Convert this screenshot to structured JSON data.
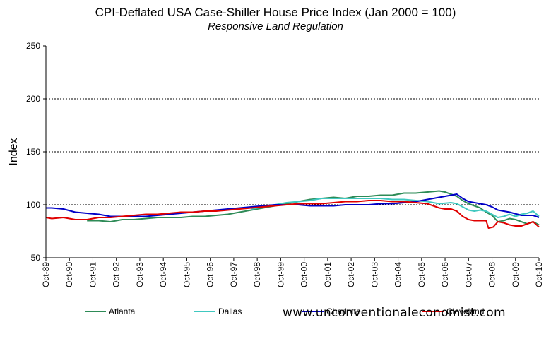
{
  "chart_data": {
    "type": "line",
    "title": "CPI-Deflated USA Case-Shiller House Price Index (Jan 2000 = 100)",
    "subtitle": "Responsive Land Regulation",
    "xlabel": "",
    "ylabel": "Index",
    "ylim": [
      50,
      250
    ],
    "yticks": [
      50,
      100,
      150,
      200,
      250
    ],
    "grid": "horizontal dashed at 100, 150, 200",
    "legend_position": "bottom",
    "x_start": 1989.75,
    "x_end": 2010.75,
    "categories": [
      "Oct-89",
      "Oct-90",
      "Oct-91",
      "Oct-92",
      "Oct-93",
      "Oct-94",
      "Oct-95",
      "Oct-96",
      "Oct-97",
      "Oct-98",
      "Oct-99",
      "Oct-00",
      "Oct-01",
      "Oct-02",
      "Oct-03",
      "Oct-04",
      "Oct-05",
      "Oct-06",
      "Oct-07",
      "Oct-08",
      "Oct-09",
      "Oct-10"
    ],
    "series": [
      {
        "name": "Atlanta",
        "color": "#2e8b57",
        "x": [
          1991.5,
          1992.0,
          1992.5,
          1993.0,
          1993.5,
          1994.0,
          1994.5,
          1995.0,
          1995.5,
          1996.0,
          1996.5,
          1997.0,
          1997.5,
          1998.0,
          1998.5,
          1999.0,
          1999.5,
          2000.0,
          2000.5,
          2001.0,
          2001.5,
          2002.0,
          2002.5,
          2003.0,
          2003.5,
          2004.0,
          2004.5,
          2005.0,
          2005.5,
          2006.0,
          2006.5,
          2006.75,
          2007.0,
          2007.25,
          2007.5,
          2007.75,
          2008.0,
          2008.25,
          2008.5,
          2008.75,
          2009.0,
          2009.25,
          2009.5,
          2009.75,
          2010.0,
          2010.25,
          2010.5,
          2010.75
        ],
        "y": [
          85,
          85,
          84,
          86,
          86,
          87,
          88,
          88,
          88,
          89,
          89,
          90,
          91,
          93,
          95,
          97,
          99,
          101,
          103,
          105,
          106,
          107,
          106,
          108,
          108,
          109,
          109,
          111,
          111,
          112,
          113,
          112,
          110,
          108,
          104,
          101,
          99,
          97,
          93,
          90,
          84,
          85,
          87,
          86,
          84,
          82,
          84,
          81
        ]
      },
      {
        "name": "Dallas",
        "color": "#40c8c0",
        "x": [
          1998.5,
          1999.0,
          1999.5,
          2000.0,
          2000.5,
          2001.0,
          2001.5,
          2002.0,
          2002.5,
          2003.0,
          2003.5,
          2004.0,
          2004.5,
          2005.0,
          2005.5,
          2006.0,
          2006.5,
          2007.0,
          2007.25,
          2007.5,
          2007.75,
          2008.0,
          2008.25,
          2008.5,
          2008.75,
          2009.0,
          2009.25,
          2009.5,
          2009.75,
          2010.0,
          2010.25,
          2010.5,
          2010.75
        ],
        "y": [
          96,
          98,
          100,
          102,
          103,
          104,
          106,
          106,
          106,
          106,
          106,
          106,
          105,
          105,
          104,
          103,
          101,
          102,
          101,
          98,
          95,
          94,
          95,
          94,
          91,
          88,
          89,
          91,
          89,
          91,
          92,
          94,
          89
        ]
      },
      {
        "name": "Charlotte",
        "color": "#0000c8",
        "x": [
          1989.75,
          1990.0,
          1990.5,
          1991.0,
          1991.5,
          1992.0,
          1992.5,
          1993.0,
          1993.5,
          1994.0,
          1994.5,
          1995.0,
          1995.5,
          1996.0,
          1996.5,
          1997.0,
          1997.5,
          1998.0,
          1998.5,
          1999.0,
          1999.5,
          2000.0,
          2000.5,
          2001.0,
          2001.5,
          2002.0,
          2002.5,
          2003.0,
          2003.5,
          2004.0,
          2004.5,
          2005.0,
          2005.5,
          2006.0,
          2006.5,
          2007.0,
          2007.25,
          2007.5,
          2007.75,
          2008.0,
          2008.25,
          2008.5,
          2008.75,
          2009.0,
          2009.5,
          2010.0,
          2010.5,
          2010.75
        ],
        "y": [
          97,
          97,
          96,
          93,
          92,
          91,
          89,
          89,
          89,
          89,
          90,
          91,
          92,
          93,
          94,
          95,
          96,
          97,
          98,
          99,
          100,
          100,
          100,
          99,
          99,
          99,
          100,
          100,
          100,
          101,
          101,
          102,
          103,
          105,
          107,
          109,
          110,
          106,
          103,
          102,
          101,
          100,
          98,
          95,
          93,
          90,
          90,
          88
        ]
      },
      {
        "name": "Cleveland",
        "color": "#e00000",
        "x": [
          1989.75,
          1990.0,
          1990.5,
          1991.0,
          1991.5,
          1992.0,
          1992.5,
          1993.0,
          1993.5,
          1994.0,
          1994.5,
          1995.0,
          1995.5,
          1996.0,
          1996.5,
          1997.0,
          1997.5,
          1998.0,
          1998.5,
          1999.0,
          1999.5,
          2000.0,
          2000.5,
          2001.0,
          2001.5,
          2002.0,
          2002.5,
          2003.0,
          2003.5,
          2004.0,
          2004.5,
          2005.0,
          2005.5,
          2006.0,
          2006.25,
          2006.5,
          2006.75,
          2007.0,
          2007.25,
          2007.5,
          2007.75,
          2008.0,
          2008.25,
          2008.5,
          2008.6,
          2008.8,
          2009.0,
          2009.25,
          2009.5,
          2009.75,
          2010.0,
          2010.25,
          2010.5,
          2010.75
        ],
        "y": [
          88,
          87,
          88,
          86,
          86,
          88,
          88,
          89,
          90,
          91,
          91,
          92,
          93,
          93,
          94,
          94,
          95,
          96,
          97,
          98,
          99,
          100,
          101,
          101,
          101,
          102,
          103,
          103,
          104,
          104,
          103,
          103,
          102,
          101,
          99,
          97,
          96,
          96,
          94,
          89,
          86,
          85,
          85,
          85,
          78,
          79,
          84,
          83,
          81,
          80,
          80,
          82,
          84,
          79
        ]
      }
    ],
    "source": "www.unconventionaleconomist.com"
  }
}
